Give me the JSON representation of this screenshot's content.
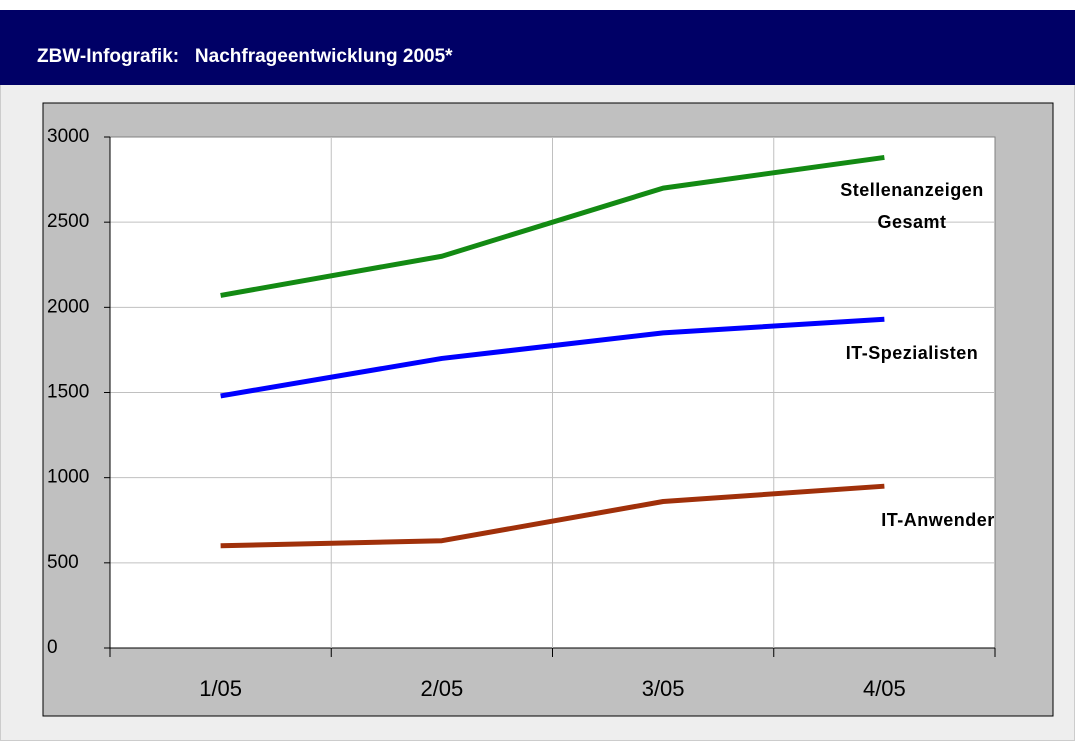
{
  "chart_data": {
    "type": "line",
    "title": "ZBW-Infografik:   Nachfrageentwicklung 2005*",
    "categories": [
      "1/05",
      "2/05",
      "3/05",
      "4/05"
    ],
    "series": [
      {
        "name": "Stellenanzeigen Gesamt",
        "color": "#138a13",
        "values": [
          2070,
          2300,
          2700,
          2880
        ]
      },
      {
        "name": "IT-Spezialisten",
        "color": "#0000ff",
        "values": [
          1480,
          1700,
          1850,
          1930
        ]
      },
      {
        "name": "IT-Anwender",
        "color": "#a0300a",
        "values": [
          600,
          630,
          860,
          950
        ]
      }
    ],
    "ylim": [
      0,
      3000
    ],
    "yticks": [
      0,
      500,
      1000,
      1500,
      2000,
      2500,
      3000
    ],
    "grid": true
  }
}
